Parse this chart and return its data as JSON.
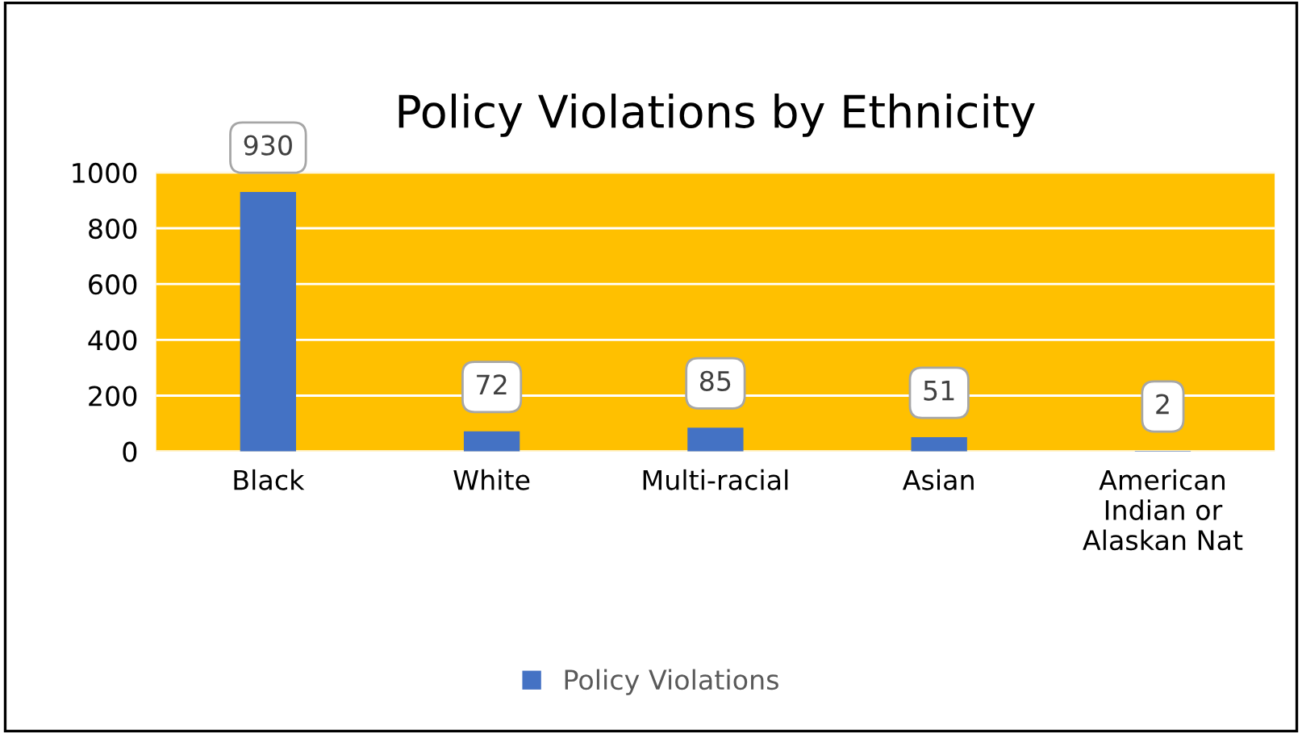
{
  "chart_data": {
    "type": "bar",
    "title": "Policy Violations by Ethnicity",
    "categories": [
      "Black",
      "White",
      "Multi-racial",
      "Asian",
      "American\nIndian or\nAlaskan Nat"
    ],
    "series": [
      {
        "name": "Policy Violations",
        "color": "#4472c4",
        "values": [
          930,
          72,
          85,
          51,
          2
        ]
      }
    ],
    "ylim": [
      0,
      1000
    ],
    "yticks": [
      0,
      200,
      400,
      600,
      800,
      1000
    ],
    "grid": "y",
    "data_labels": true,
    "legend": "bottom"
  }
}
